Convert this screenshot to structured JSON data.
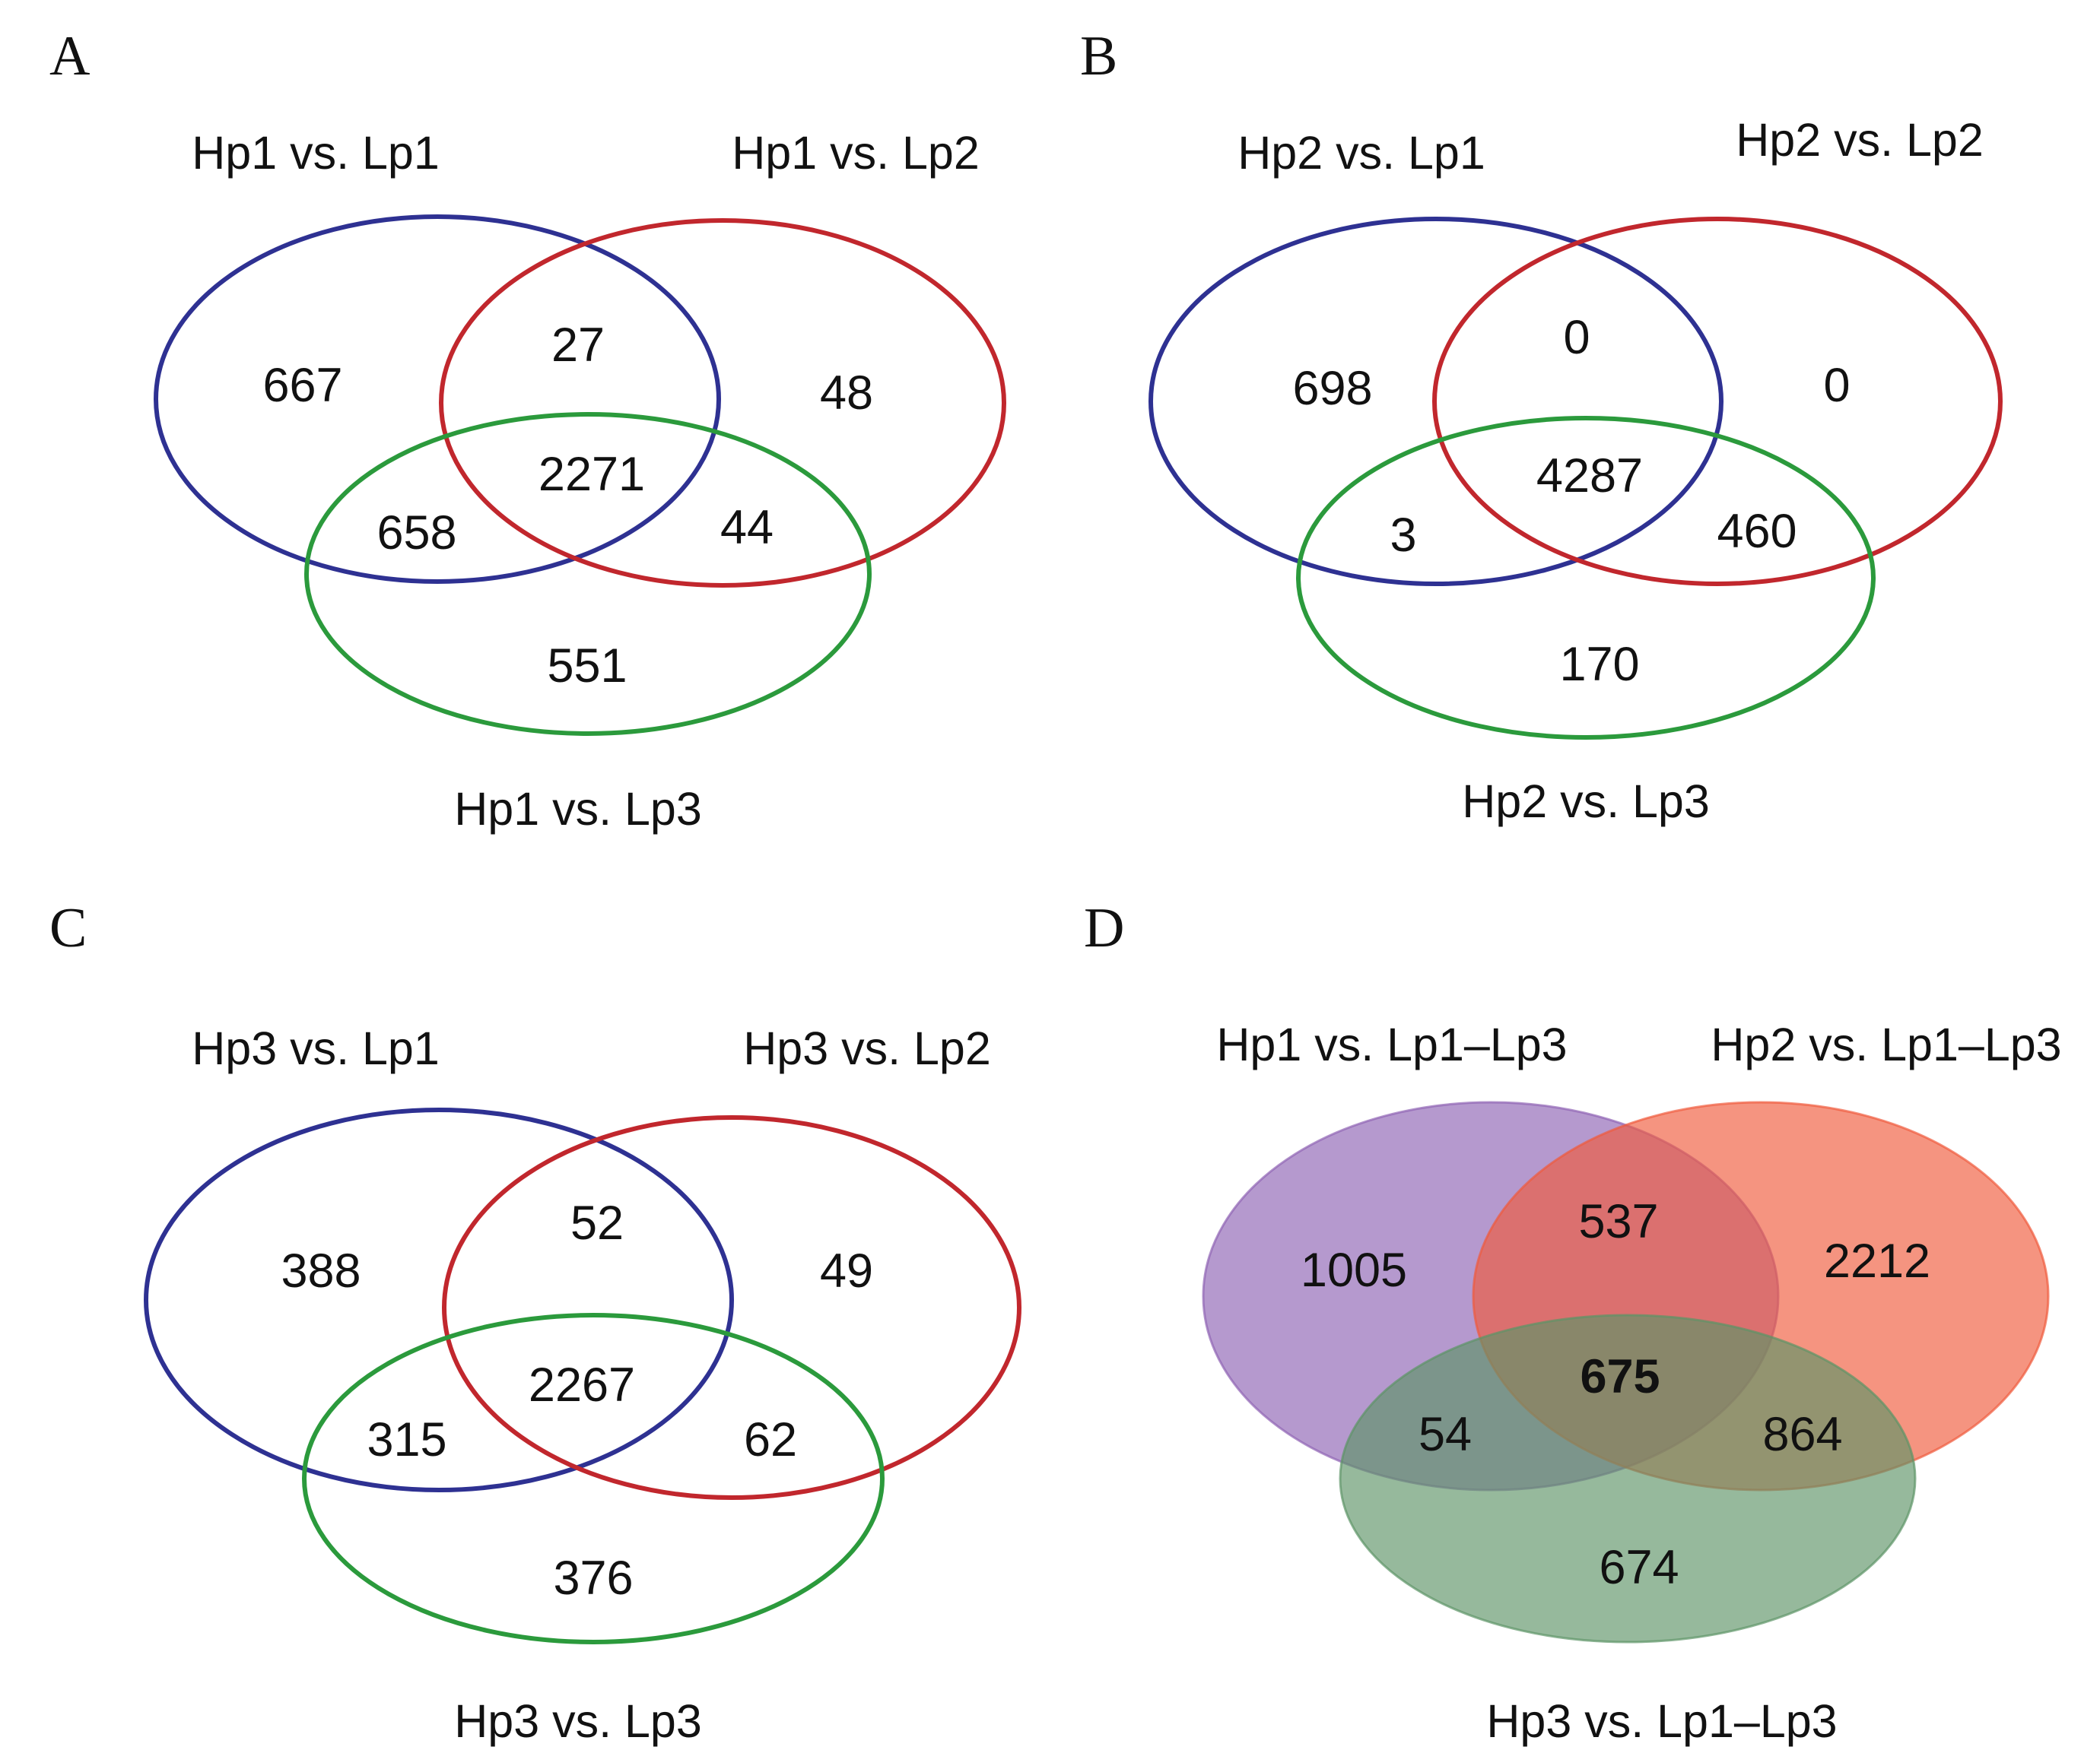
{
  "panels": [
    {
      "letter": "A",
      "style": "outline",
      "sets": [
        {
          "label": "Hp1 vs. Lp1",
          "color": "#2e3192"
        },
        {
          "label": "Hp1 vs. Lp2",
          "color": "#c1272d"
        },
        {
          "label": "Hp1 vs. Lp3",
          "color": "#2b9a3c"
        }
      ],
      "counts": {
        "only1": "667",
        "only2": "48",
        "only3": "551",
        "s12": "27",
        "s13": "658",
        "s23": "44",
        "s123": "2271"
      }
    },
    {
      "letter": "B",
      "style": "outline",
      "sets": [
        {
          "label": "Hp2 vs. Lp1",
          "color": "#2e3192"
        },
        {
          "label": "Hp2 vs. Lp2",
          "color": "#c1272d"
        },
        {
          "label": "Hp2 vs. Lp3",
          "color": "#2b9a3c"
        }
      ],
      "counts": {
        "only1": "698",
        "only2": "0",
        "only3": "170",
        "s12": "0",
        "s13": "3",
        "s23": "460",
        "s123": "4287"
      }
    },
    {
      "letter": "C",
      "style": "outline",
      "sets": [
        {
          "label": "Hp3 vs. Lp1",
          "color": "#2e3192"
        },
        {
          "label": "Hp3 vs. Lp2",
          "color": "#c1272d"
        },
        {
          "label": "Hp3 vs. Lp3",
          "color": "#2b9a3c"
        }
      ],
      "counts": {
        "only1": "388",
        "only2": "49",
        "only3": "376",
        "s12": "52",
        "s13": "315",
        "s23": "62",
        "s123": "2267"
      }
    },
    {
      "letter": "D",
      "style": "filled",
      "sets": [
        {
          "label": "Hp1 vs. Lp1–Lp3",
          "color": "#8e62b4"
        },
        {
          "label": "Hp2 vs. Lp1–Lp3",
          "color": "#f05a3c"
        },
        {
          "label": "Hp3 vs. Lp1–Lp3",
          "color": "#5d9467"
        }
      ],
      "counts": {
        "only1": "1005",
        "only2": "2212",
        "only3": "674",
        "s12": "537",
        "s13": "54",
        "s23": "864",
        "s123": "675"
      }
    }
  ]
}
